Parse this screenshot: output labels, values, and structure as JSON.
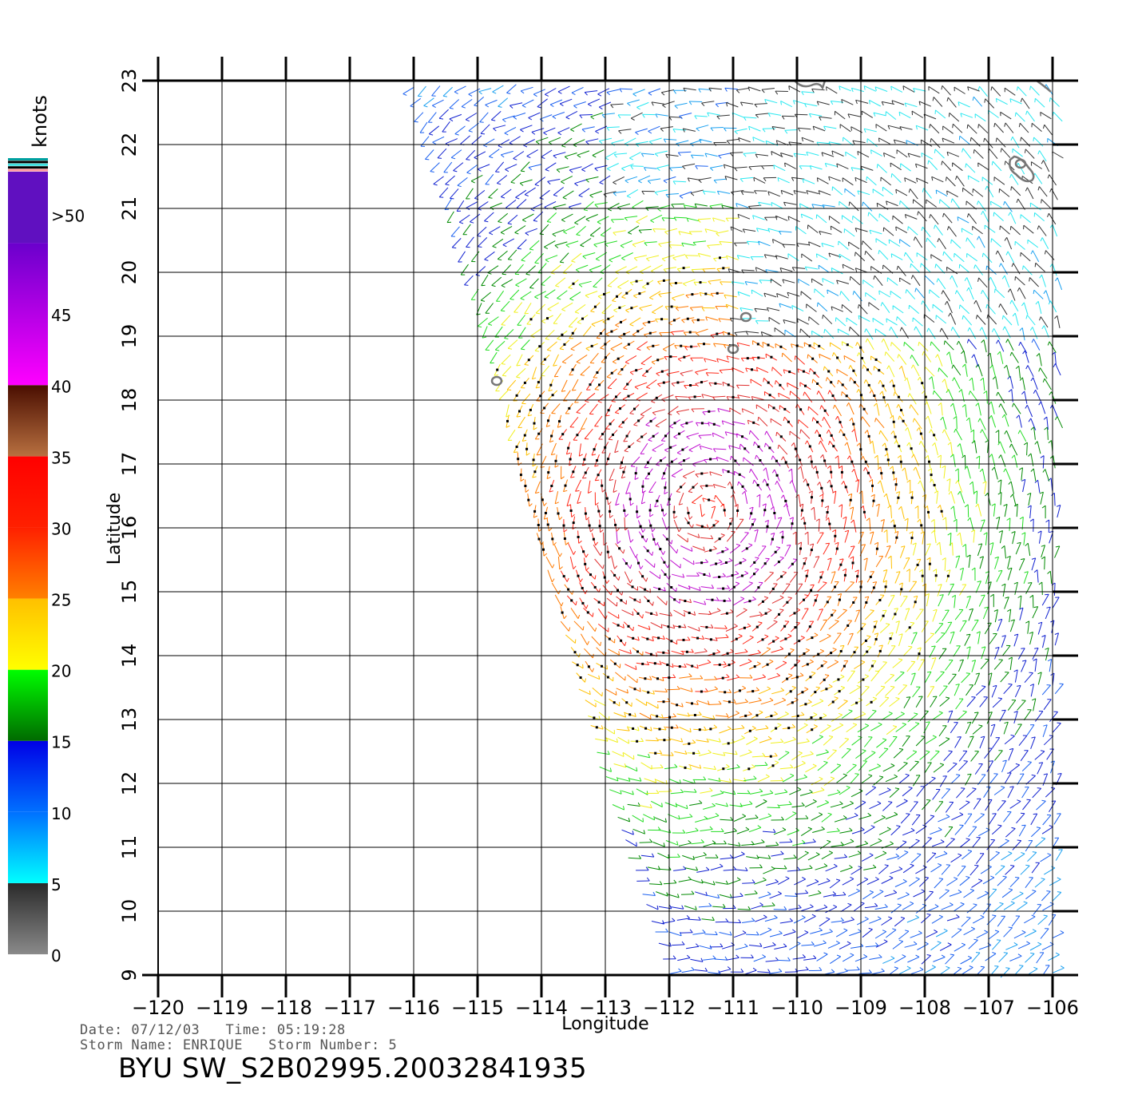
{
  "chart_data": {
    "type": "wind-vector-map",
    "xlabel": "Longitude",
    "ylabel": "Latitude",
    "xlim": [
      -120,
      -106
    ],
    "ylim": [
      9,
      23
    ],
    "x_ticks": [
      -120,
      -119,
      -118,
      -117,
      -116,
      -115,
      -114,
      -113,
      -112,
      -111,
      -110,
      -109,
      -108,
      -107,
      -106
    ],
    "y_ticks": [
      9,
      10,
      11,
      12,
      13,
      14,
      15,
      16,
      17,
      18,
      19,
      20,
      21,
      22,
      23
    ],
    "x_tick_labels": [
      "−120",
      "−119",
      "−118",
      "−117",
      "−116",
      "−115",
      "−114",
      "−113",
      "−112",
      "−111",
      "−110",
      "−109",
      "−108",
      "−107",
      "−106"
    ],
    "y_tick_labels": [
      "9",
      "10",
      "11",
      "12",
      "13",
      "14",
      "15",
      "16",
      "17",
      "18",
      "19",
      "20",
      "21",
      "22",
      "23"
    ],
    "grid": true,
    "storm_center": {
      "lon": -111.4,
      "lat": 16.3
    },
    "swath": {
      "west_edge": [
        [
          -116.2,
          23
        ],
        [
          -115.1,
          19.5
        ],
        [
          -114.3,
          16.5
        ],
        [
          -113.0,
          12.0
        ],
        [
          -112.0,
          9
        ]
      ],
      "east_edge": [
        [
          -105.9,
          23
        ],
        [
          -105.9,
          9
        ]
      ]
    },
    "colorbar": {
      "unit": "knots",
      "labels": [
        ">50",
        "45",
        "40",
        "35",
        "30",
        "25",
        "20",
        "15",
        "10",
        "5",
        "0"
      ],
      "bands": [
        {
          "min": 0,
          "max": 5,
          "colors": [
            "#8a8a8a",
            "#2a2a2a"
          ]
        },
        {
          "min": 5,
          "max": 10,
          "colors": [
            "#00ffff",
            "#0070ff"
          ]
        },
        {
          "min": 10,
          "max": 15,
          "colors": [
            "#0070ff",
            "#0000e6"
          ]
        },
        {
          "min": 15,
          "max": 20,
          "colors": [
            "#006a00",
            "#00ff00"
          ]
        },
        {
          "min": 20,
          "max": 25,
          "colors": [
            "#ffff00",
            "#ffc000"
          ]
        },
        {
          "min": 25,
          "max": 30,
          "colors": [
            "#ff8000",
            "#ff2000"
          ]
        },
        {
          "min": 30,
          "max": 35,
          "colors": [
            "#ff2000",
            "#ff0000"
          ]
        },
        {
          "min": 35,
          "max": 40,
          "colors": [
            "#b87040",
            "#4a0e00"
          ]
        },
        {
          "min": 40,
          "max": 50,
          "colors": [
            "#ff00ff",
            "#6a00cc"
          ]
        },
        {
          "min": 50,
          "max": 55,
          "colors": [
            "#6010c0",
            "#6010c0"
          ]
        }
      ]
    },
    "islands": [
      {
        "name": "island-1",
        "lon": -110.8,
        "lat": 19.3
      },
      {
        "name": "island-2",
        "lon": -111.0,
        "lat": 18.8
      },
      {
        "name": "island-3",
        "lon": -114.7,
        "lat": 18.3
      },
      {
        "name": "island-4",
        "lon": -106.5,
        "lat": 21.7
      }
    ]
  },
  "footer": {
    "line1": "Date: 07/12/03   Time: 05:19:28",
    "line2": "Storm Name: ENRIQUE   Storm Number: 5",
    "title": "BYU SW_S2B02995.20032841935"
  }
}
